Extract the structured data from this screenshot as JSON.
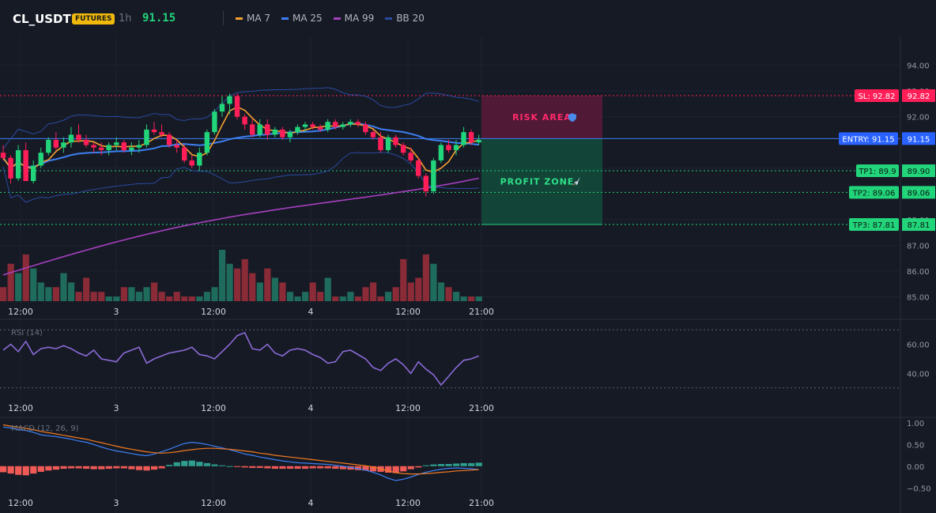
{
  "header": {
    "symbol": "CL_USDT",
    "badge": "FUTURES",
    "interval": "1h",
    "price": "91.15",
    "indicators": [
      {
        "label": "MA 7",
        "color": "#f5a030"
      },
      {
        "label": "MA 25",
        "color": "#3d7ff2"
      },
      {
        "label": "MA 99",
        "color": "#a63fbf"
      },
      {
        "label": "BB 20",
        "color": "#2a4aa0"
      }
    ]
  },
  "colors": {
    "up": "#22d47a",
    "down": "#ff1e58",
    "vol_up": "#1f6b5c",
    "vol_down": "#8a2b37",
    "rsi": "#8a6ad6",
    "macd": "#3d7ff2",
    "signal": "#f07a20",
    "hist_up": "#2e9e8e",
    "hist_down": "#f05a56"
  },
  "price_axis": {
    "ticks": [
      "94.00",
      "93.00",
      "92.00",
      "90.00",
      "88.00",
      "87.00",
      "86.00",
      "85.00"
    ],
    "range": [
      84.8,
      95.0
    ]
  },
  "time_axis": {
    "labels": [
      "12:00",
      "3",
      "12:00",
      "4",
      "12:00",
      "21:00"
    ]
  },
  "levels": {
    "sl": {
      "tag": "SL: 92.82",
      "price": "92.82",
      "value": 92.82
    },
    "entry": {
      "tag": "ENTRY: 91.15",
      "price": "91.15",
      "value": 91.15
    },
    "tp1": {
      "tag": "TP1: 89.9",
      "price": "89.90",
      "value": 89.9
    },
    "tp2": {
      "tag": "TP2: 89.06",
      "price": "89.06",
      "value": 89.06
    },
    "tp3": {
      "tag": "TP3: 87.81",
      "price": "87.81",
      "value": 87.81
    }
  },
  "zones": {
    "risk_label": "RISK AREA",
    "risk_icon": "shield-icon",
    "profit_label": "PROFIT ZONE",
    "profit_icon": "rocket-icon"
  },
  "rsi": {
    "title": "RSI (14)",
    "ticks": [
      "60.00",
      "40.00"
    ],
    "range": [
      25,
      75
    ],
    "upper": 70,
    "lower": 30
  },
  "macd": {
    "title": "MACD (12, 26, 9)",
    "ticks": [
      "1.00",
      "0.50",
      "0.00",
      "−0.50"
    ],
    "range": [
      -0.55,
      1.05
    ]
  },
  "chart_data": {
    "type": "candlestick",
    "candles": [
      [
        90.6,
        90.9,
        90.3,
        90.4
      ],
      [
        90.4,
        90.5,
        89.4,
        89.6
      ],
      [
        89.6,
        90.9,
        89.5,
        90.7
      ],
      [
        90.7,
        91.0,
        89.5,
        89.5
      ],
      [
        89.5,
        90.3,
        89.4,
        90.1
      ],
      [
        90.1,
        90.8,
        90.0,
        90.6
      ],
      [
        90.6,
        91.2,
        90.5,
        91.1
      ],
      [
        91.1,
        91.4,
        90.7,
        90.8
      ],
      [
        90.8,
        91.2,
        90.6,
        91.0
      ],
      [
        91.0,
        91.6,
        90.8,
        91.3
      ],
      [
        91.3,
        91.7,
        91.0,
        91.1
      ],
      [
        91.1,
        91.3,
        90.8,
        90.9
      ],
      [
        90.9,
        91.0,
        90.6,
        90.8
      ],
      [
        90.8,
        91.0,
        90.5,
        90.7
      ],
      [
        90.7,
        91.0,
        90.5,
        90.9
      ],
      [
        90.9,
        91.2,
        90.7,
        91.0
      ],
      [
        91.0,
        91.1,
        90.6,
        90.7
      ],
      [
        90.7,
        91.0,
        90.5,
        90.8
      ],
      [
        90.8,
        91.1,
        90.6,
        90.9
      ],
      [
        90.9,
        91.7,
        90.8,
        91.5
      ],
      [
        91.5,
        91.8,
        91.3,
        91.4
      ],
      [
        91.4,
        91.7,
        91.2,
        91.3
      ],
      [
        91.3,
        91.4,
        90.8,
        90.9
      ],
      [
        90.9,
        91.1,
        90.6,
        90.8
      ],
      [
        90.8,
        90.9,
        90.2,
        90.3
      ],
      [
        90.3,
        90.5,
        90.0,
        90.1
      ],
      [
        90.1,
        90.8,
        89.9,
        90.6
      ],
      [
        90.6,
        91.5,
        90.5,
        91.4
      ],
      [
        91.4,
        92.3,
        91.3,
        92.2
      ],
      [
        92.2,
        92.8,
        92.0,
        92.5
      ],
      [
        92.5,
        92.9,
        92.1,
        92.8
      ],
      [
        92.8,
        92.9,
        91.9,
        92.0
      ],
      [
        92.0,
        92.1,
        91.5,
        91.7
      ],
      [
        91.7,
        91.9,
        91.2,
        91.3
      ],
      [
        91.3,
        91.9,
        91.2,
        91.7
      ],
      [
        91.7,
        91.9,
        91.1,
        91.3
      ],
      [
        91.3,
        91.6,
        91.2,
        91.5
      ],
      [
        91.5,
        91.6,
        91.1,
        91.2
      ],
      [
        91.2,
        91.5,
        91.0,
        91.4
      ],
      [
        91.4,
        91.7,
        91.3,
        91.6
      ],
      [
        91.6,
        91.8,
        91.4,
        91.7
      ],
      [
        91.7,
        91.8,
        91.5,
        91.6
      ],
      [
        91.6,
        91.7,
        91.4,
        91.5
      ],
      [
        91.5,
        91.9,
        91.4,
        91.8
      ],
      [
        91.8,
        91.9,
        91.5,
        91.6
      ],
      [
        91.6,
        91.8,
        91.5,
        91.7
      ],
      [
        91.7,
        91.9,
        91.6,
        91.8
      ],
      [
        91.8,
        91.9,
        91.6,
        91.7
      ],
      [
        91.7,
        91.8,
        91.3,
        91.4
      ],
      [
        91.4,
        91.5,
        91.1,
        91.2
      ],
      [
        91.2,
        91.4,
        90.6,
        90.7
      ],
      [
        90.7,
        91.3,
        90.6,
        91.2
      ],
      [
        91.2,
        91.3,
        90.8,
        90.9
      ],
      [
        90.9,
        91.0,
        90.5,
        90.6
      ],
      [
        90.6,
        90.8,
        90.2,
        90.3
      ],
      [
        90.3,
        90.4,
        89.6,
        89.7
      ],
      [
        89.7,
        89.8,
        88.9,
        89.1
      ],
      [
        89.1,
        90.4,
        89.0,
        90.3
      ],
      [
        90.3,
        91.0,
        90.2,
        90.9
      ],
      [
        90.9,
        91.1,
        90.6,
        90.7
      ],
      [
        90.7,
        91.1,
        90.5,
        90.9
      ],
      [
        90.9,
        91.6,
        90.8,
        91.4
      ],
      [
        91.4,
        91.5,
        90.9,
        91.0
      ],
      [
        91.0,
        91.3,
        90.9,
        91.1
      ]
    ],
    "volume": [
      3,
      8,
      6,
      10,
      7,
      4,
      3,
      3,
      6,
      4,
      2,
      5,
      2,
      2,
      1,
      1,
      3,
      3,
      2,
      3,
      4,
      2,
      1,
      2,
      1,
      1,
      1,
      2,
      3,
      11,
      8,
      7,
      9,
      6,
      4,
      7,
      5,
      4,
      2,
      1,
      2,
      4,
      2,
      5,
      1,
      1,
      2,
      1,
      3,
      4,
      1,
      2,
      3,
      9,
      4,
      5,
      10,
      8,
      4,
      3,
      2,
      1,
      1,
      1
    ],
    "volume_max": 11,
    "rsi": [
      56,
      60,
      55,
      62,
      53,
      57,
      58,
      57,
      59,
      57,
      54,
      52,
      56,
      50,
      49,
      48,
      54,
      56,
      58,
      47,
      50,
      52,
      54,
      55,
      56,
      58,
      53,
      52,
      50,
      55,
      60,
      66,
      68,
      57,
      56,
      60,
      54,
      52,
      56,
      57,
      56,
      53,
      51,
      47,
      48,
      55,
      56,
      53,
      50,
      44,
      42,
      47,
      50,
      46,
      40,
      48,
      43,
      39,
      32,
      38,
      44,
      49,
      50,
      52
    ],
    "macd": [
      0.9,
      0.88,
      0.84,
      0.82,
      0.78,
      0.72,
      0.7,
      0.68,
      0.65,
      0.62,
      0.58,
      0.55,
      0.5,
      0.44,
      0.39,
      0.35,
      0.32,
      0.29,
      0.26,
      0.24,
      0.28,
      0.33,
      0.39,
      0.46,
      0.52,
      0.55,
      0.53,
      0.5,
      0.46,
      0.42,
      0.38,
      0.33,
      0.28,
      0.25,
      0.21,
      0.18,
      0.15,
      0.12,
      0.1,
      0.08,
      0.07,
      0.06,
      0.05,
      0.04,
      0.02,
      0.0,
      -0.03,
      -0.06,
      -0.09,
      -0.14,
      -0.2,
      -0.28,
      -0.33,
      -0.3,
      -0.25,
      -0.19,
      -0.14,
      -0.1,
      -0.07,
      -0.05,
      -0.04,
      -0.05,
      -0.06,
      -0.08
    ],
    "signal": [
      0.95,
      0.92,
      0.9,
      0.87,
      0.84,
      0.8,
      0.77,
      0.74,
      0.71,
      0.68,
      0.65,
      0.62,
      0.58,
      0.54,
      0.5,
      0.46,
      0.42,
      0.39,
      0.36,
      0.33,
      0.31,
      0.3,
      0.31,
      0.33,
      0.36,
      0.38,
      0.4,
      0.41,
      0.41,
      0.4,
      0.39,
      0.37,
      0.35,
      0.33,
      0.3,
      0.28,
      0.25,
      0.23,
      0.21,
      0.19,
      0.17,
      0.15,
      0.13,
      0.11,
      0.09,
      0.07,
      0.05,
      0.03,
      0.01,
      -0.02,
      -0.06,
      -0.11,
      -0.15,
      -0.17,
      -0.18,
      -0.18,
      -0.17,
      -0.16,
      -0.14,
      -0.13,
      -0.11,
      -0.1,
      -0.09,
      -0.08
    ],
    "histogram": [
      -0.14,
      -0.17,
      -0.2,
      -0.21,
      -0.17,
      -0.13,
      -0.1,
      -0.08,
      -0.06,
      -0.05,
      -0.05,
      -0.06,
      -0.07,
      -0.07,
      -0.06,
      -0.05,
      -0.05,
      -0.07,
      -0.09,
      -0.1,
      -0.08,
      -0.05,
      0.03,
      0.09,
      0.12,
      0.13,
      0.1,
      0.07,
      0.04,
      0.02,
      0.0,
      -0.02,
      -0.03,
      -0.04,
      -0.04,
      -0.05,
      -0.06,
      -0.06,
      -0.06,
      -0.06,
      -0.06,
      -0.05,
      -0.05,
      -0.05,
      -0.06,
      -0.07,
      -0.08,
      -0.09,
      -0.1,
      -0.12,
      -0.13,
      -0.15,
      -0.16,
      -0.12,
      -0.07,
      -0.03,
      0.02,
      0.04,
      0.05,
      0.05,
      0.06,
      0.07,
      0.07,
      0.08
    ]
  }
}
